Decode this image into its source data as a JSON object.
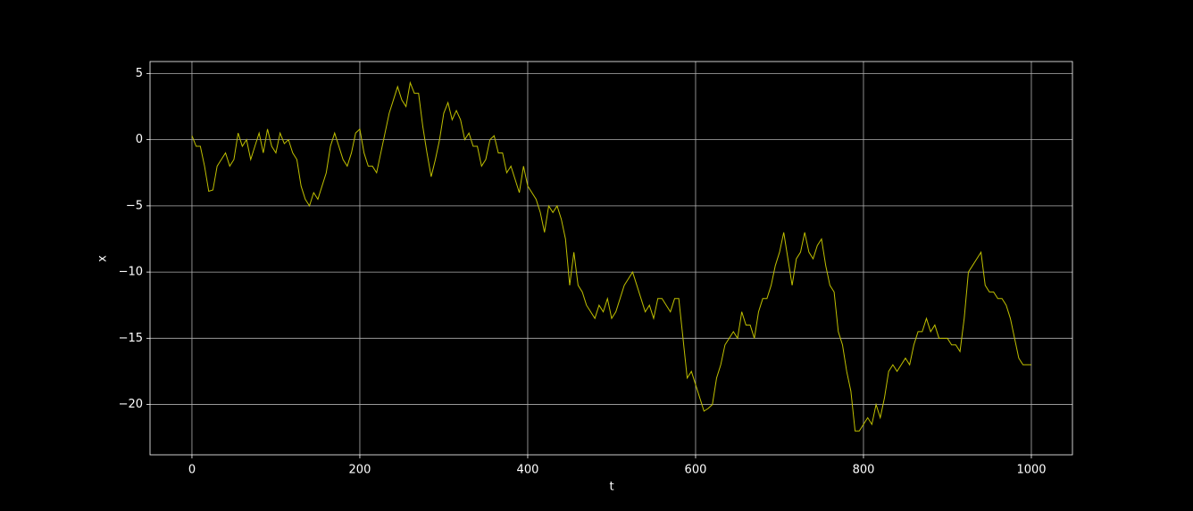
{
  "chart_data": {
    "type": "line",
    "xlabel": "t",
    "ylabel": "x",
    "xlim": [
      -49.95,
      1048.95
    ],
    "ylim": [
      -23.8,
      5.9
    ],
    "xticks": [
      0,
      200,
      400,
      600,
      800,
      1000
    ],
    "yticks": [
      5,
      0,
      {
        "value": -5,
        "label": "−5"
      },
      {
        "value": -10,
        "label": "−10"
      },
      {
        "value": -15,
        "label": "−15"
      },
      {
        "value": -20,
        "label": "−20"
      }
    ],
    "grid": true,
    "series": [
      {
        "color": "#bfbf00",
        "x": [
          0,
          5,
          10,
          15,
          20,
          25,
          30,
          35,
          40,
          45,
          50,
          55,
          60,
          65,
          70,
          75,
          80,
          85,
          90,
          95,
          100,
          105,
          110,
          115,
          120,
          125,
          130,
          135,
          140,
          145,
          150,
          155,
          160,
          165,
          170,
          175,
          180,
          185,
          190,
          195,
          200,
          205,
          210,
          215,
          220,
          225,
          230,
          235,
          240,
          245,
          250,
          255,
          260,
          265,
          270,
          275,
          280,
          285,
          290,
          295,
          300,
          305,
          310,
          315,
          320,
          325,
          330,
          335,
          340,
          345,
          350,
          355,
          360,
          365,
          370,
          375,
          380,
          385,
          390,
          395,
          400,
          405,
          410,
          415,
          420,
          425,
          430,
          435,
          440,
          445,
          450,
          455,
          460,
          465,
          470,
          475,
          480,
          485,
          490,
          495,
          500,
          505,
          510,
          515,
          520,
          525,
          530,
          535,
          540,
          545,
          550,
          555,
          560,
          565,
          570,
          575,
          580,
          585,
          590,
          595,
          600,
          605,
          610,
          615,
          620,
          625,
          630,
          635,
          640,
          645,
          650,
          655,
          660,
          665,
          670,
          675,
          680,
          685,
          690,
          695,
          700,
          705,
          710,
          715,
          720,
          725,
          730,
          735,
          740,
          745,
          750,
          755,
          760,
          765,
          770,
          775,
          780,
          785,
          790,
          795,
          800,
          805,
          810,
          815,
          820,
          825,
          830,
          835,
          840,
          845,
          850,
          855,
          860,
          865,
          870,
          875,
          880,
          885,
          890,
          895,
          900,
          905,
          910,
          915,
          920,
          925,
          930,
          935,
          940,
          945,
          950,
          955,
          960,
          965,
          970,
          975,
          980,
          985,
          990,
          995,
          1000
        ],
        "values": [
          0.3,
          -0.5,
          -0.5,
          -2,
          -3.9,
          -3.8,
          -2,
          -1.5,
          -1,
          -2,
          -1.5,
          0.5,
          -0.5,
          0,
          -1.5,
          -0.5,
          0.5,
          -1,
          0.8,
          -0.5,
          -1,
          0.5,
          -0.3,
          0,
          -1,
          -1.5,
          -3.5,
          -4.5,
          -5,
          -4,
          -4.5,
          -3.5,
          -2.5,
          -0.5,
          0.5,
          -0.5,
          -1.5,
          -2,
          -1,
          0.5,
          0.8,
          -1,
          -2,
          -2,
          -2.5,
          -1,
          0.5,
          2,
          3,
          4,
          3,
          2.5,
          4.3,
          3.5,
          3.5,
          1,
          -1,
          -2.8,
          -1.5,
          0,
          2,
          2.8,
          1.5,
          2.2,
          1.5,
          0,
          0.5,
          -0.5,
          -0.5,
          -2,
          -1.5,
          0,
          0.3,
          -1,
          -1,
          -2.5,
          -2,
          -3,
          -4,
          -2,
          -3.5,
          -4,
          -4.5,
          -5.5,
          -7,
          -5,
          -5.5,
          -5,
          -6,
          -7.5,
          -11,
          -8.5,
          -11,
          -11.5,
          -12.5,
          -13,
          -13.5,
          -12.5,
          -13,
          -12,
          -13.5,
          -13,
          -12,
          -11,
          -10.5,
          -10,
          -11,
          -12,
          -13,
          -12.5,
          -13.5,
          -12,
          -12,
          -12.5,
          -13,
          -12,
          -12,
          -15,
          -18,
          -17.5,
          -18.5,
          -19.5,
          -20.5,
          -20.3,
          -20,
          -18,
          -17,
          -15.5,
          -15,
          -14.5,
          -15,
          -13,
          -14,
          -14,
          -15,
          -13,
          -12,
          -12,
          -11,
          -9.5,
          -8.5,
          -7,
          -9,
          -11,
          -9,
          -8.5,
          -7,
          -8.5,
          -9,
          -8,
          -7.5,
          -9.5,
          -11,
          -11.5,
          -14.5,
          -15.5,
          -17.5,
          -19,
          -22,
          -22,
          -21.5,
          -21,
          -21.5,
          -20,
          -21,
          -19.5,
          -17.5,
          -17,
          -17.5,
          -17,
          -16.5,
          -17,
          -15.5,
          -14.5,
          -14.5,
          -13.5,
          -14.5,
          -14,
          -15,
          -15,
          -15,
          -15.5,
          -15.5,
          -16,
          -13.5,
          -10,
          -9.5,
          -9,
          -8.5,
          -11,
          -11.5,
          -11.5,
          -12,
          -12,
          -12.5,
          -13.5,
          -15,
          -16.5,
          -17,
          -17,
          -17
        ]
      }
    ]
  }
}
